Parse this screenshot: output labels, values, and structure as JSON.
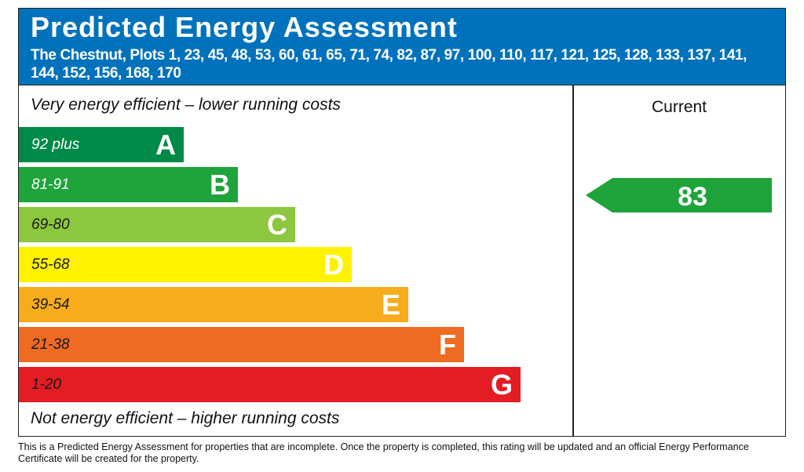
{
  "header": {
    "title": "Predicted Energy Assessment",
    "subtitle": "The Chestnut, Plots 1, 23, 45, 48, 53, 60, 61, 65, 71, 74, 82, 87, 97, 100, 110, 117, 121, 125, 128, 133, 137, 141, 144, 152, 156, 168, 170"
  },
  "top_note": "Very energy efficient – lower running costs",
  "bottom_note": "Not energy efficient – higher running costs",
  "bands": [
    {
      "range": "92 plus",
      "letter": "A",
      "color": "#008a47",
      "text_color": "#ffffff"
    },
    {
      "range": "81-91",
      "letter": "B",
      "color": "#1fa33b",
      "text_color": "#ffffff"
    },
    {
      "range": "69-80",
      "letter": "C",
      "color": "#8dc63f",
      "text_color": "#1a1a1a"
    },
    {
      "range": "55-68",
      "letter": "D",
      "color": "#fff200",
      "text_color": "#1a1a1a"
    },
    {
      "range": "39-54",
      "letter": "E",
      "color": "#f7ac1b",
      "text_color": "#1a1a1a"
    },
    {
      "range": "21-38",
      "letter": "F",
      "color": "#ef6b22",
      "text_color": "#1a1a1a"
    },
    {
      "range": "1-20",
      "letter": "G",
      "color": "#e31d23",
      "text_color": "#1a1a1a"
    }
  ],
  "current": {
    "label": "Current",
    "value": 83,
    "color": "#1fa33b"
  },
  "footer": "This is a Predicted Energy Assessment for properties that are incomplete. Once the property is completed, this rating will be updated and an official Energy Performance Certificate will be created for the property."
}
